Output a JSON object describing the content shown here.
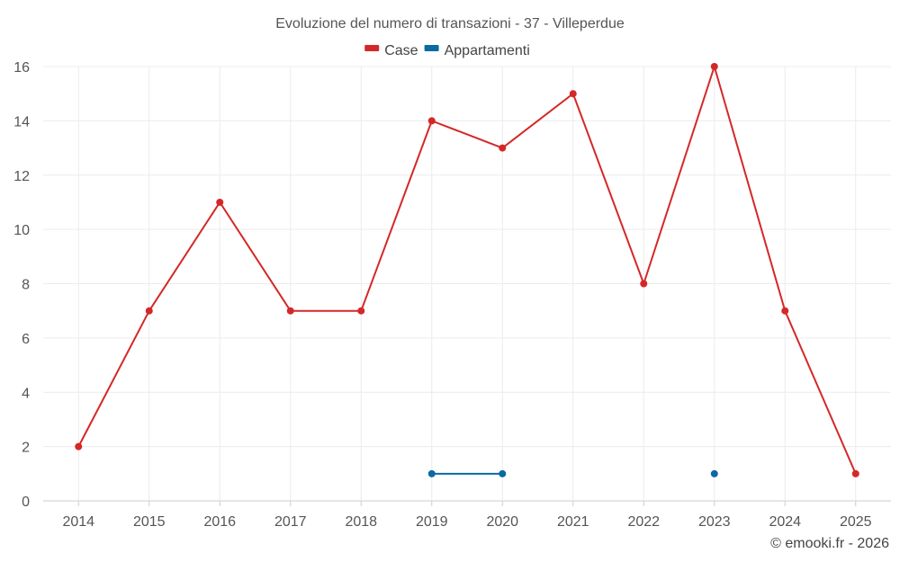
{
  "chart_data": {
    "type": "line",
    "title": "Evoluzione del numero di transazioni - 37 - Villeperdue",
    "categories": [
      "2014",
      "2015",
      "2016",
      "2017",
      "2018",
      "2019",
      "2020",
      "2021",
      "2022",
      "2023",
      "2024",
      "2025"
    ],
    "series": [
      {
        "name": "Case",
        "color": "#d42828",
        "values": [
          2,
          7,
          11,
          7,
          7,
          14,
          13,
          15,
          8,
          16,
          7,
          1
        ]
      },
      {
        "name": "Appartamenti",
        "color": "#0b69a3",
        "values": [
          null,
          null,
          null,
          null,
          null,
          1,
          1,
          null,
          null,
          1,
          null,
          null
        ]
      }
    ],
    "ylim": [
      0,
      16
    ],
    "yticks": [
      "0",
      "2",
      "4",
      "6",
      "8",
      "10",
      "12",
      "14",
      "16"
    ],
    "grid": true,
    "legend_position": "top-center"
  },
  "credit": "© emooki.fr - 2026"
}
